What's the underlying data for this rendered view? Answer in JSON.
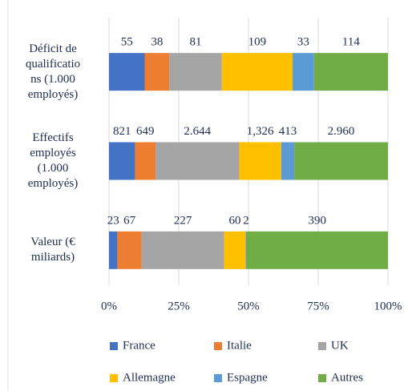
{
  "chart_data": {
    "type": "bar",
    "orientation": "horizontal",
    "stacked": "percent",
    "categories": [
      "Déficit de\nqualificatio\nns (1.000\nemployés)",
      "Effectifs\nemployés\n(1.000\nemployés)",
      "Valeur (€\nmiliards)"
    ],
    "series": [
      {
        "name": "France",
        "color": "#4472c4",
        "values": [
          55,
          821,
          23
        ],
        "value_labels": [
          "55",
          "821",
          "23"
        ]
      },
      {
        "name": "Italie",
        "color": "#ed7d31",
        "values": [
          38,
          649,
          67
        ],
        "value_labels": [
          "38",
          "649",
          "67"
        ]
      },
      {
        "name": "UK",
        "color": "#a5a5a5",
        "values": [
          81,
          2644,
          227
        ],
        "value_labels": [
          "81",
          "2.644",
          "227"
        ]
      },
      {
        "name": "Allemagne",
        "color": "#ffc000",
        "values": [
          109,
          1326,
          60
        ],
        "value_labels": [
          "109",
          "1,326",
          "60"
        ]
      },
      {
        "name": "Espagne",
        "color": "#5b9bd5",
        "values": [
          33,
          413,
          2
        ],
        "value_labels": [
          "33",
          "413",
          "2"
        ]
      },
      {
        "name": "Autres",
        "color": "#70ad47",
        "values": [
          114,
          2960,
          390
        ],
        "value_labels": [
          "114",
          "2.960",
          "390"
        ]
      }
    ],
    "xlim": [
      0,
      100
    ],
    "xticks": [
      {
        "value": 0,
        "label": "0%"
      },
      {
        "value": 25,
        "label": "25%"
      },
      {
        "value": 50,
        "label": "50%"
      },
      {
        "value": 75,
        "label": "75%"
      },
      {
        "value": 100,
        "label": "100%"
      }
    ],
    "grid": true,
    "legend": "bottom"
  }
}
